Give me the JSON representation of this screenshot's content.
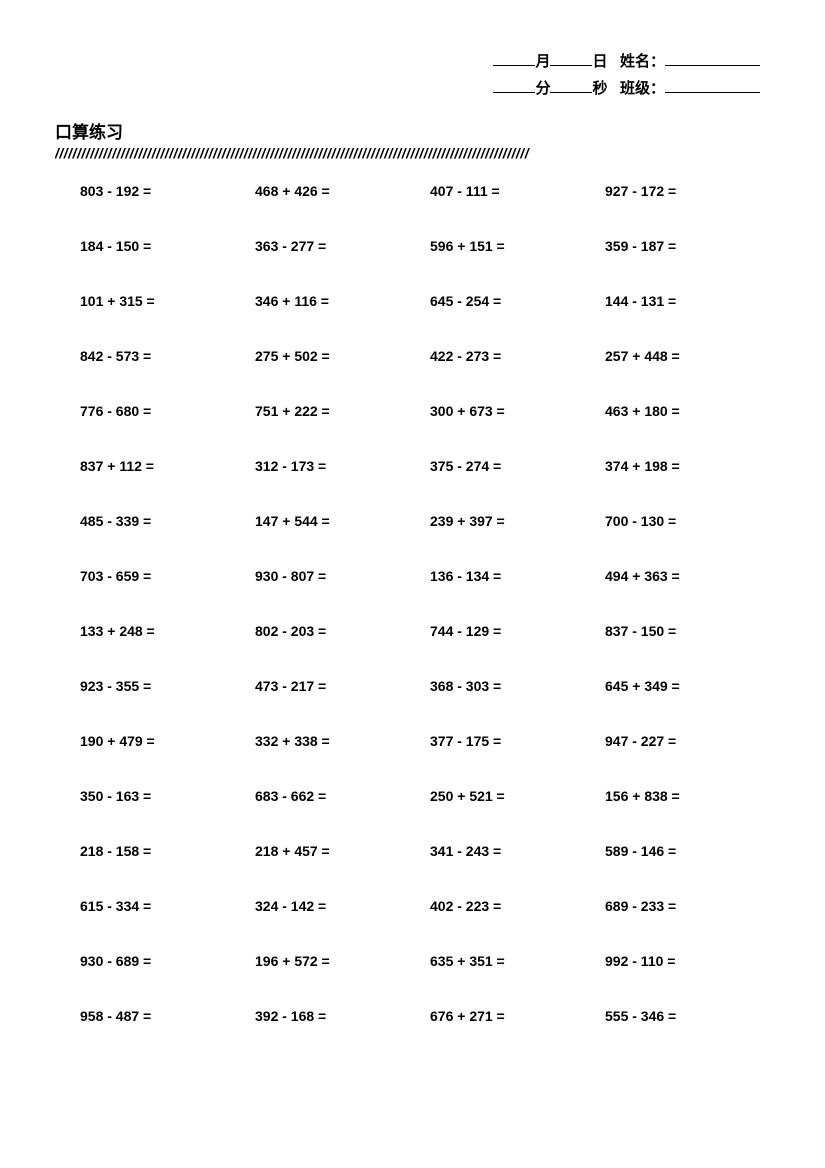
{
  "header": {
    "month_label": "月",
    "day_label": "日",
    "name_label": "姓名：",
    "minute_label": "分",
    "second_label": "秒",
    "class_label": "班级："
  },
  "title": "口算练习",
  "divider": "////////////////////////////////////////////////////////////////////////////////////////////////////////////",
  "columns": 4,
  "rows": 16,
  "font_size_problem": 14,
  "font_size_title": 17,
  "text_color": "#000000",
  "background_color": "#ffffff",
  "problems": [
    "803 - 192 =",
    "468 + 426 =",
    "407 - 111 =",
    "927 - 172 =",
    "184 - 150 =",
    "363 - 277 =",
    "596 + 151 =",
    "359 - 187 =",
    "101 + 315 =",
    "346 + 116 =",
    "645 - 254 =",
    "144 - 131 =",
    "842 - 573 =",
    "275 + 502 =",
    "422 - 273 =",
    "257 + 448 =",
    "776 - 680 =",
    "751 + 222 =",
    "300 + 673 =",
    "463 + 180 =",
    "837 + 112 =",
    "312 - 173 =",
    "375 - 274 =",
    "374 + 198 =",
    "485 - 339 =",
    "147 + 544 =",
    "239 + 397 =",
    "700 - 130 =",
    "703 - 659 =",
    "930 - 807 =",
    "136 - 134 =",
    "494 + 363 =",
    "133 + 248 =",
    "802 - 203 =",
    "744 - 129 =",
    "837 - 150 =",
    "923 - 355 =",
    "473 - 217 =",
    "368 - 303 =",
    "645 + 349 =",
    "190 + 479 =",
    "332 + 338 =",
    "377 - 175 =",
    "947 - 227 =",
    "350 - 163 =",
    "683 - 662 =",
    "250 + 521 =",
    "156 + 838 =",
    "218 - 158 =",
    "218 + 457 =",
    "341 - 243 =",
    "589 - 146 =",
    "615 - 334 =",
    "324 - 142 =",
    "402 - 223 =",
    "689 - 233 =",
    "930 - 689 =",
    "196 + 572 =",
    "635 + 351 =",
    "992 - 110 =",
    "958 - 487 =",
    "392 - 168 =",
    "676 + 271 =",
    "555 - 346 ="
  ]
}
